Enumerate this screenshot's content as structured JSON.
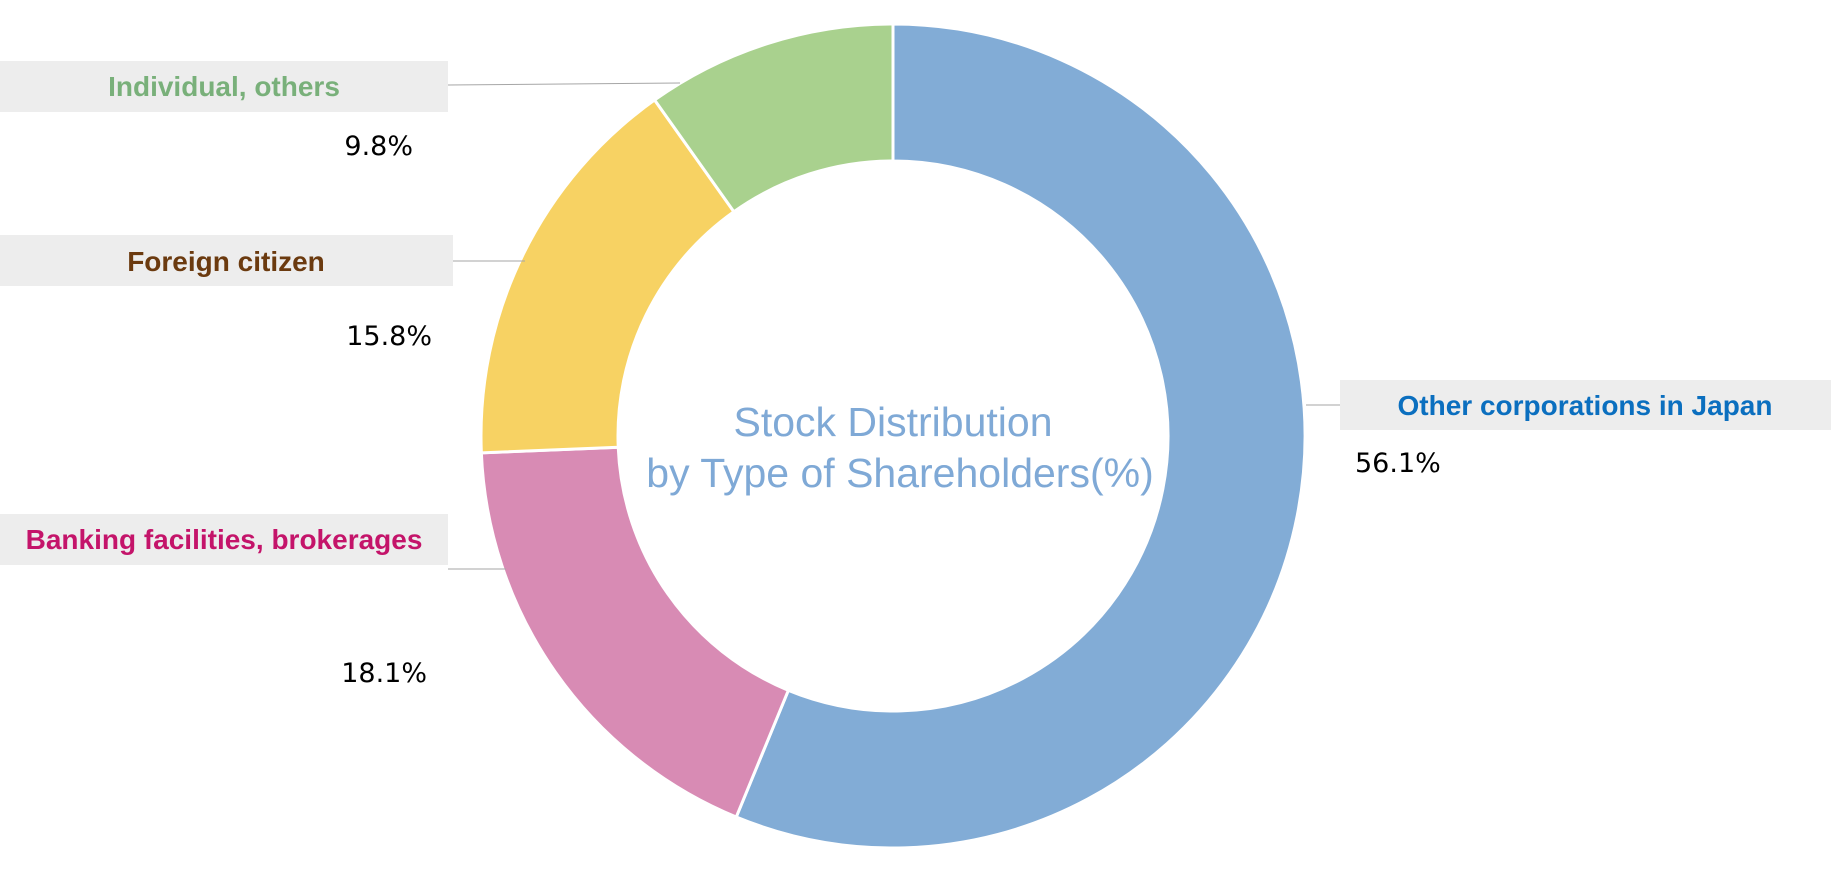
{
  "chart_data": {
    "type": "pie",
    "title_lines": [
      "Stock Distribution",
      "by Type of Shareholders(%)"
    ],
    "title_color": "#7fa9d6",
    "unit": "%",
    "slices": [
      {
        "label": "Other corporations in Japan",
        "value": 56.1,
        "value_label": "56.1%",
        "color": "#82acd6",
        "label_color": "#0b6fbf"
      },
      {
        "label": "Banking facilities, brokerages",
        "value": 18.1,
        "value_label": "18.1%",
        "color": "#d88bb4",
        "label_color": "#c4146a"
      },
      {
        "label": "Foreign citizen",
        "value": 15.8,
        "value_label": "15.8%",
        "color": "#f7d263",
        "label_color": "#6b3a0f"
      },
      {
        "label": "Individual, others",
        "value": 9.8,
        "value_label": "9.8%",
        "color": "#a9d18e",
        "label_color": "#79b07a"
      }
    ]
  }
}
